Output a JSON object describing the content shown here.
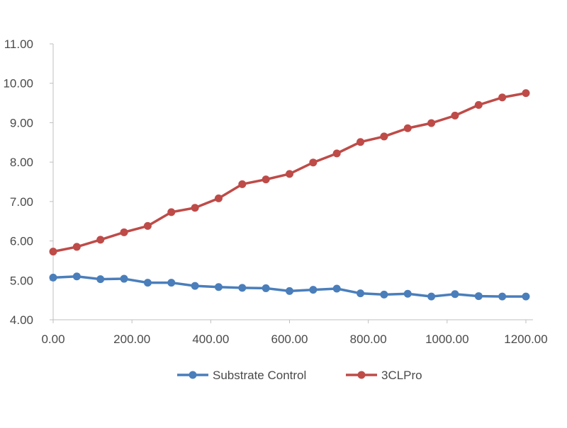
{
  "chart_data": {
    "type": "line",
    "title": "",
    "xlabel": "",
    "ylabel": "",
    "xlim": [
      0,
      1200
    ],
    "ylim": [
      4,
      11
    ],
    "x_ticks": [
      "0.00",
      "200.00",
      "400.00",
      "600.00",
      "800.00",
      "1000.00",
      "1200.00"
    ],
    "y_ticks": [
      "4.00",
      "5.00",
      "6.00",
      "7.00",
      "8.00",
      "9.00",
      "10.00",
      "11.00"
    ],
    "grid": false,
    "legend_position": "bottom",
    "x": [
      0,
      60,
      120,
      180,
      240,
      300,
      360,
      420,
      480,
      540,
      600,
      660,
      720,
      780,
      840,
      900,
      960,
      1020,
      1080,
      1140,
      1200
    ],
    "series": [
      {
        "name": "Substrate Control",
        "color": "#4a7ebb",
        "values": [
          5.07,
          5.1,
          5.03,
          5.04,
          4.94,
          4.94,
          4.86,
          4.83,
          4.81,
          4.8,
          4.73,
          4.76,
          4.79,
          4.67,
          4.64,
          4.66,
          4.59,
          4.65,
          4.6,
          4.59,
          4.59
        ]
      },
      {
        "name": "3CLPro",
        "color": "#be4b48",
        "values": [
          5.73,
          5.85,
          6.03,
          6.22,
          6.38,
          6.73,
          6.84,
          7.08,
          7.44,
          7.56,
          7.7,
          7.99,
          8.22,
          8.51,
          8.65,
          8.86,
          8.99,
          9.18,
          9.45,
          9.64,
          9.75
        ]
      }
    ]
  }
}
